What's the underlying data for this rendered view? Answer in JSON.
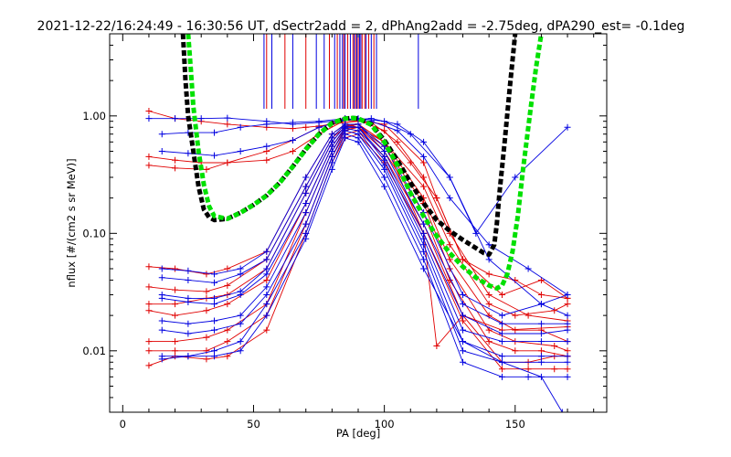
{
  "chart_data": {
    "type": "line",
    "title": "2021-12-22/16:24:49 - 16:30:56 UT, dSectr2add = 2, dPhAng2add = -2.75deg, dPA290_est=  -0.1deg",
    "xlabel": "PA [deg]",
    "ylabel": "nflux [#/(cm2 s sr MeV)]",
    "xlim": [
      -5,
      185
    ],
    "ylim": [
      0.003,
      5
    ],
    "ylog": true,
    "grid": false,
    "x_ticks": [
      {
        "value": 0,
        "label": "0"
      },
      {
        "value": 50,
        "label": "50"
      },
      {
        "value": 100,
        "label": "100"
      },
      {
        "value": 150,
        "label": "150"
      }
    ],
    "y_ticks": [
      {
        "value": 0.01,
        "label": "0.01"
      },
      {
        "value": 0.1,
        "label": "0.10"
      },
      {
        "value": 1,
        "label": "1.00"
      }
    ],
    "colors": {
      "red": "#e00000",
      "blue": "#0000e0",
      "green": "#00e000",
      "black": "#000000"
    },
    "marker": "plus",
    "vertical_markers": {
      "y_range": [
        1.15,
        5
      ],
      "red_x": [
        55,
        62,
        70,
        79,
        82,
        84.5,
        86,
        88,
        89,
        90,
        91.5,
        92.5,
        94,
        96
      ],
      "blue_x": [
        54,
        57,
        65,
        74,
        77,
        81,
        83,
        84,
        85,
        87,
        88.5,
        89.5,
        90.5,
        91,
        93,
        95,
        97,
        113
      ]
    },
    "model_curves": [
      {
        "color": "black",
        "style": "dashed",
        "x": [
          23,
          24,
          25,
          27,
          29,
          31,
          33,
          35,
          40,
          45,
          50,
          55,
          60,
          65,
          70,
          75,
          80,
          85,
          88,
          90,
          95,
          100,
          105,
          110,
          115,
          120,
          125,
          130,
          135,
          138,
          140,
          142,
          143,
          144,
          146,
          148,
          150
        ],
        "y": [
          5,
          2.0,
          1.0,
          0.5,
          0.25,
          0.16,
          0.137,
          0.13,
          0.133,
          0.15,
          0.175,
          0.21,
          0.27,
          0.37,
          0.52,
          0.7,
          0.87,
          0.95,
          0.96,
          0.95,
          0.85,
          0.62,
          0.42,
          0.27,
          0.18,
          0.13,
          0.105,
          0.088,
          0.075,
          0.068,
          0.066,
          0.08,
          0.12,
          0.22,
          0.6,
          1.8,
          5
        ]
      },
      {
        "color": "green",
        "style": "dashed",
        "x": [
          25,
          26,
          27,
          29,
          31,
          33,
          35,
          40,
          45,
          50,
          55,
          60,
          65,
          70,
          75,
          80,
          85,
          88,
          90,
          95,
          100,
          105,
          110,
          115,
          120,
          125,
          130,
          135,
          140,
          143,
          145,
          147,
          149,
          151,
          153,
          156,
          158,
          160
        ],
        "y": [
          5,
          2.5,
          1.2,
          0.5,
          0.26,
          0.17,
          0.14,
          0.133,
          0.15,
          0.175,
          0.21,
          0.27,
          0.37,
          0.52,
          0.7,
          0.87,
          0.95,
          0.96,
          0.95,
          0.84,
          0.6,
          0.38,
          0.22,
          0.14,
          0.095,
          0.068,
          0.052,
          0.042,
          0.036,
          0.034,
          0.036,
          0.045,
          0.07,
          0.14,
          0.35,
          1.2,
          2.6,
          5
        ]
      }
    ],
    "series": [
      {
        "color": "red",
        "x": [
          10,
          20,
          30,
          40,
          55,
          65,
          70,
          75,
          80,
          85,
          90,
          95,
          100,
          115,
          120,
          130,
          140,
          150,
          160,
          170
        ],
        "y": [
          1.1,
          0.95,
          0.9,
          0.85,
          0.8,
          0.78,
          0.8,
          0.82,
          0.85,
          0.88,
          0.9,
          0.88,
          0.85,
          0.4,
          0.2,
          0.06,
          0.045,
          0.04,
          0.03,
          0.028
        ]
      },
      {
        "color": "red",
        "x": [
          10,
          20,
          30,
          40,
          55,
          65,
          75,
          85,
          95,
          105,
          115,
          125,
          140,
          155,
          170
        ],
        "y": [
          0.45,
          0.42,
          0.4,
          0.4,
          0.42,
          0.5,
          0.7,
          0.92,
          0.88,
          0.6,
          0.3,
          0.1,
          0.03,
          0.02,
          0.018
        ]
      },
      {
        "color": "red",
        "x": [
          10,
          20,
          32,
          40,
          55,
          65,
          75,
          85,
          90,
          100,
          110,
          120,
          130,
          145,
          160,
          170
        ],
        "y": [
          0.38,
          0.36,
          0.35,
          0.4,
          0.5,
          0.62,
          0.8,
          0.95,
          0.92,
          0.75,
          0.4,
          0.2,
          0.06,
          0.03,
          0.04,
          0.028
        ]
      },
      {
        "color": "blue",
        "x": [
          10,
          20,
          30,
          40,
          55,
          65,
          75,
          85,
          90,
          100,
          110,
          125,
          140,
          160,
          170
        ],
        "y": [
          0.95,
          0.95,
          0.95,
          0.96,
          0.9,
          0.85,
          0.88,
          0.92,
          0.95,
          0.9,
          0.7,
          0.3,
          0.06,
          0.025,
          0.02
        ]
      },
      {
        "color": "blue",
        "x": [
          15,
          25,
          35,
          45,
          55,
          65,
          75,
          85,
          95,
          105,
          115,
          125,
          140,
          155,
          170
        ],
        "y": [
          0.7,
          0.72,
          0.72,
          0.8,
          0.85,
          0.88,
          0.9,
          0.95,
          0.9,
          0.75,
          0.45,
          0.2,
          0.08,
          0.05,
          0.03
        ]
      },
      {
        "color": "blue",
        "x": [
          15,
          25,
          35,
          45,
          55,
          65,
          75,
          85,
          95,
          105,
          115,
          125,
          135,
          150,
          170
        ],
        "y": [
          0.5,
          0.48,
          0.46,
          0.5,
          0.55,
          0.62,
          0.8,
          0.92,
          0.95,
          0.85,
          0.6,
          0.3,
          0.1,
          0.3,
          0.8
        ]
      },
      {
        "color": "red",
        "x": [
          10,
          20,
          32,
          40,
          55,
          70,
          80,
          85,
          90,
          100,
          115,
          120,
          130,
          145,
          170
        ],
        "y": [
          0.052,
          0.05,
          0.045,
          0.05,
          0.07,
          0.3,
          0.7,
          0.85,
          0.8,
          0.6,
          0.1,
          0.011,
          0.02,
          0.015,
          0.016
        ]
      },
      {
        "color": "red",
        "x": [
          10,
          20,
          32,
          40,
          55,
          70,
          80,
          85,
          90,
          100,
          115,
          125,
          140,
          150,
          165,
          170
        ],
        "y": [
          0.035,
          0.033,
          0.032,
          0.036,
          0.06,
          0.25,
          0.65,
          0.8,
          0.85,
          0.6,
          0.25,
          0.08,
          0.025,
          0.02,
          0.022,
          0.025
        ]
      },
      {
        "color": "red",
        "x": [
          10,
          20,
          32,
          40,
          55,
          70,
          80,
          85,
          90,
          100,
          115,
          125,
          140,
          150,
          160,
          170
        ],
        "y": [
          0.025,
          0.025,
          0.028,
          0.03,
          0.05,
          0.22,
          0.6,
          0.82,
          0.85,
          0.6,
          0.2,
          0.06,
          0.02,
          0.015,
          0.015,
          0.012
        ]
      },
      {
        "color": "red",
        "x": [
          10,
          20,
          32,
          40,
          55,
          70,
          80,
          85,
          90,
          100,
          115,
          125,
          140,
          150,
          165,
          170
        ],
        "y": [
          0.022,
          0.02,
          0.022,
          0.025,
          0.04,
          0.18,
          0.55,
          0.78,
          0.8,
          0.55,
          0.18,
          0.05,
          0.015,
          0.012,
          0.011,
          0.01
        ]
      },
      {
        "color": "red",
        "x": [
          10,
          20,
          32,
          40,
          55,
          70,
          80,
          85,
          90,
          100,
          115,
          125,
          140,
          150,
          160,
          170
        ],
        "y": [
          0.012,
          0.012,
          0.013,
          0.015,
          0.025,
          0.15,
          0.5,
          0.75,
          0.8,
          0.5,
          0.15,
          0.04,
          0.012,
          0.01,
          0.01,
          0.009
        ]
      },
      {
        "color": "red",
        "x": [
          10,
          20,
          32,
          40,
          55,
          70,
          80,
          85,
          90,
          100,
          115,
          130,
          145,
          155,
          165,
          170
        ],
        "y": [
          0.01,
          0.01,
          0.01,
          0.012,
          0.02,
          0.12,
          0.45,
          0.7,
          0.75,
          0.45,
          0.12,
          0.02,
          0.008,
          0.008,
          0.009,
          0.009
        ]
      },
      {
        "color": "red",
        "x": [
          10,
          20,
          32,
          40,
          55,
          70,
          80,
          85,
          90,
          100,
          115,
          130,
          145,
          155,
          165,
          170
        ],
        "y": [
          0.0075,
          0.009,
          0.0085,
          0.009,
          0.015,
          0.1,
          0.4,
          0.65,
          0.7,
          0.4,
          0.1,
          0.018,
          0.007,
          0.007,
          0.007,
          0.007
        ]
      },
      {
        "color": "blue",
        "x": [
          15,
          25,
          35,
          45,
          55,
          70,
          80,
          85,
          90,
          100,
          115,
          130,
          145,
          160,
          170
        ],
        "y": [
          0.05,
          0.048,
          0.045,
          0.05,
          0.07,
          0.3,
          0.7,
          0.85,
          0.85,
          0.55,
          0.15,
          0.03,
          0.02,
          0.025,
          0.03
        ]
      },
      {
        "color": "blue",
        "x": [
          15,
          25,
          35,
          45,
          55,
          70,
          80,
          85,
          90,
          100,
          115,
          130,
          145,
          160,
          170
        ],
        "y": [
          0.042,
          0.04,
          0.038,
          0.045,
          0.06,
          0.25,
          0.65,
          0.85,
          0.85,
          0.5,
          0.12,
          0.025,
          0.017,
          0.017,
          0.017
        ]
      },
      {
        "color": "blue",
        "x": [
          15,
          25,
          35,
          45,
          55,
          70,
          80,
          85,
          90,
          100,
          115,
          130,
          145,
          160,
          170
        ],
        "y": [
          0.03,
          0.028,
          0.028,
          0.032,
          0.05,
          0.22,
          0.6,
          0.82,
          0.8,
          0.45,
          0.1,
          0.02,
          0.014,
          0.014,
          0.015
        ]
      },
      {
        "color": "blue",
        "x": [
          15,
          25,
          35,
          45,
          55,
          70,
          80,
          85,
          90,
          100,
          115,
          130,
          145,
          160,
          170
        ],
        "y": [
          0.028,
          0.026,
          0.025,
          0.03,
          0.045,
          0.18,
          0.55,
          0.8,
          0.8,
          0.42,
          0.09,
          0.015,
          0.012,
          0.012,
          0.012
        ]
      },
      {
        "color": "blue",
        "x": [
          15,
          25,
          35,
          45,
          55,
          70,
          80,
          85,
          90,
          100,
          115,
          130,
          145,
          160,
          170
        ],
        "y": [
          0.018,
          0.017,
          0.018,
          0.02,
          0.035,
          0.15,
          0.5,
          0.78,
          0.75,
          0.38,
          0.08,
          0.012,
          0.009,
          0.009,
          0.009
        ]
      },
      {
        "color": "blue",
        "x": [
          15,
          25,
          35,
          45,
          55,
          70,
          80,
          85,
          90,
          100,
          115,
          130,
          145,
          160,
          170
        ],
        "y": [
          0.015,
          0.014,
          0.015,
          0.017,
          0.03,
          0.12,
          0.45,
          0.75,
          0.7,
          0.35,
          0.07,
          0.01,
          0.008,
          0.008,
          0.008
        ]
      },
      {
        "color": "blue",
        "x": [
          15,
          25,
          35,
          45,
          55,
          70,
          80,
          85,
          90,
          100,
          115,
          130,
          145,
          155,
          170
        ],
        "y": [
          0.009,
          0.009,
          0.01,
          0.012,
          0.025,
          0.1,
          0.4,
          0.7,
          0.65,
          0.3,
          0.06,
          0.008,
          0.006,
          0.006,
          0.006
        ]
      },
      {
        "color": "blue",
        "x": [
          15,
          25,
          35,
          45,
          55,
          70,
          80,
          85,
          90,
          100,
          115,
          130,
          145,
          160,
          168
        ],
        "y": [
          0.0085,
          0.009,
          0.009,
          0.01,
          0.02,
          0.09,
          0.35,
          0.65,
          0.6,
          0.25,
          0.05,
          0.012,
          0.008,
          0.006,
          0.003
        ]
      }
    ]
  }
}
